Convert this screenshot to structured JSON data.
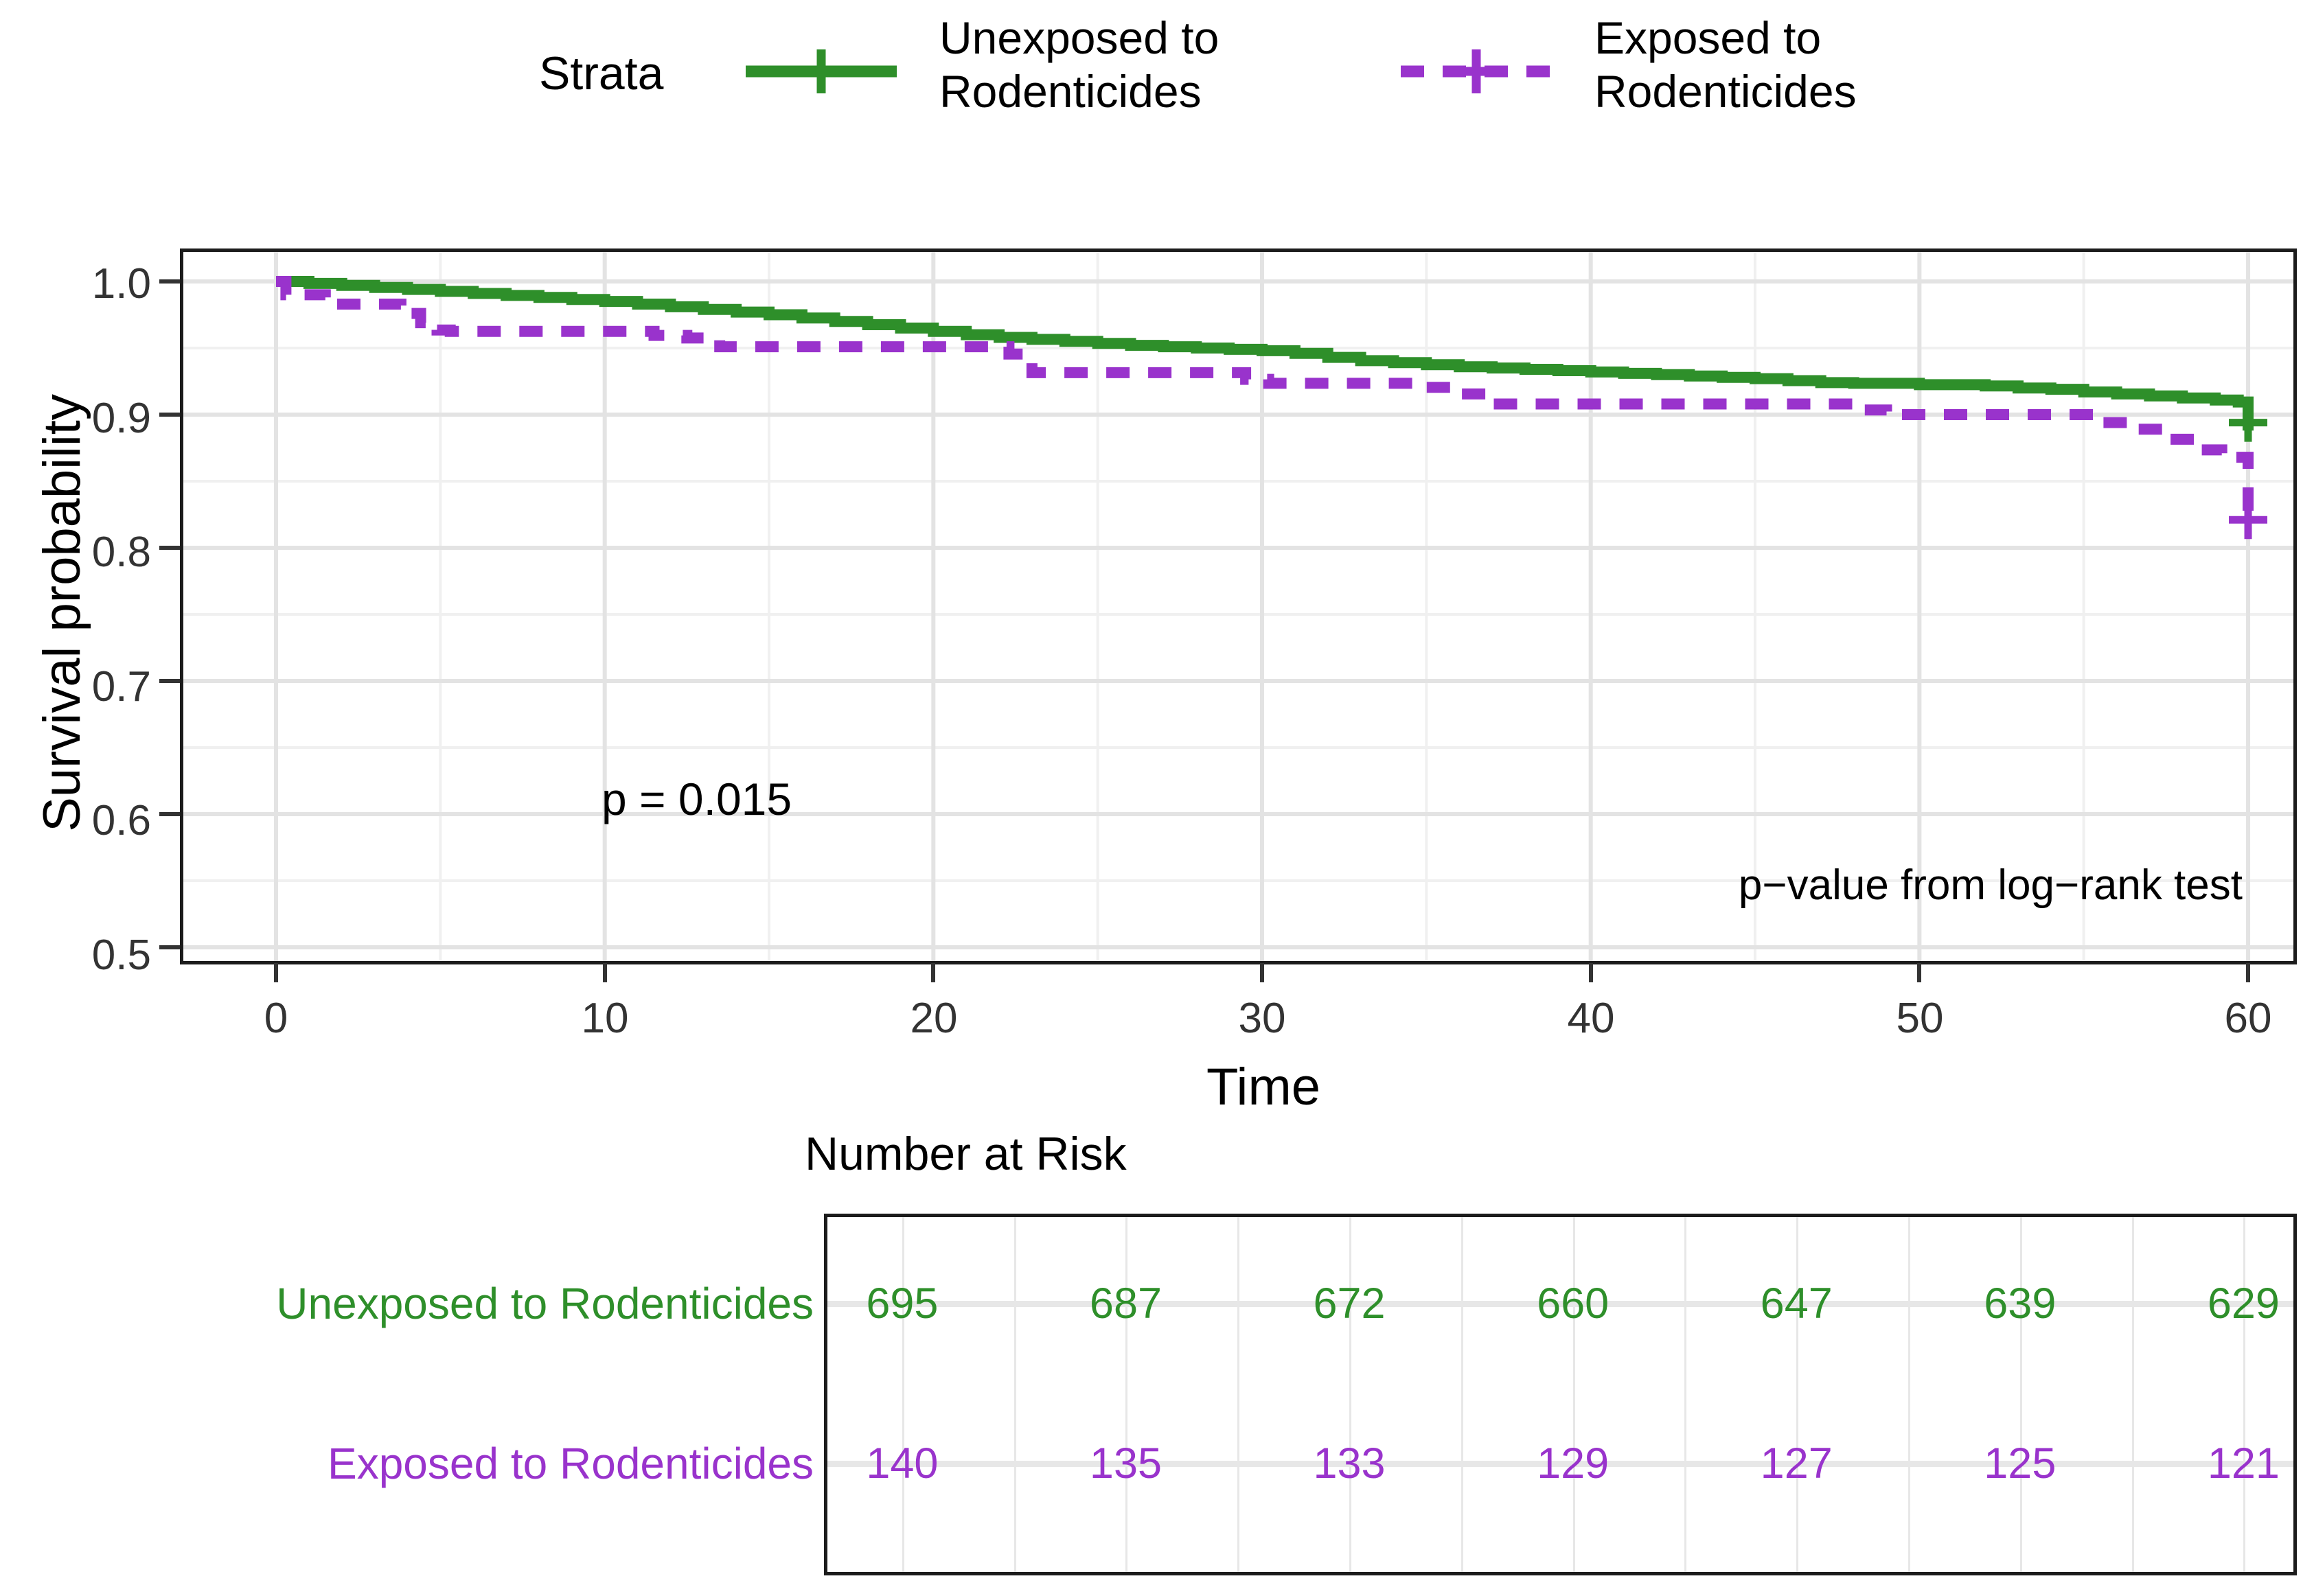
{
  "legend": {
    "title": "Strata",
    "items": [
      {
        "label_lines": [
          "Unexposed to",
          "Rodenticides"
        ],
        "series": 0
      },
      {
        "label_lines": [
          "Exposed to",
          "Rodenticides"
        ],
        "series": 1
      }
    ]
  },
  "chart_data": {
    "type": "line",
    "subtype": "kaplan-meier-step-curves",
    "title": "",
    "xlabel": "Time",
    "ylabel": "Survival probability",
    "xlim": [
      0,
      60
    ],
    "ylim": [
      0.5,
      1.0
    ],
    "xticks": [
      0,
      10,
      20,
      30,
      40,
      50,
      60
    ],
    "xtick_labels": [
      "0",
      "10",
      "20",
      "30",
      "40",
      "50",
      "60"
    ],
    "yticks": [
      1.0,
      0.9,
      0.8,
      0.7,
      0.6,
      0.5
    ],
    "ytick_labels": [
      "1.0",
      "0.9",
      "0.8",
      "0.7",
      "0.6",
      "0.5"
    ],
    "grid": "major+minor",
    "legend_position": "top",
    "annotations": [
      {
        "text": "p = 0.015",
        "x": 10,
        "y": 0.6,
        "align": "left"
      },
      {
        "text": "p−value from log−rank test",
        "x": 59.5,
        "y": 0.52,
        "align": "right"
      }
    ],
    "series": [
      {
        "name": "Unexposed to Rodenticides",
        "color": "#2E8F2A",
        "line": "solid",
        "steps": [
          [
            0,
            1.0
          ],
          [
            1,
            0.9985
          ],
          [
            2,
            0.997
          ],
          [
            3,
            0.9955
          ],
          [
            4,
            0.994
          ],
          [
            5,
            0.9925
          ],
          [
            6,
            0.991
          ],
          [
            7,
            0.9895
          ],
          [
            8,
            0.988
          ],
          [
            9,
            0.9865
          ],
          [
            10,
            0.985
          ],
          [
            11,
            0.983
          ],
          [
            12,
            0.981
          ],
          [
            13,
            0.979
          ],
          [
            14,
            0.977
          ],
          [
            15,
            0.975
          ],
          [
            16,
            0.9725
          ],
          [
            17,
            0.97
          ],
          [
            18,
            0.9675
          ],
          [
            19,
            0.965
          ],
          [
            20,
            0.9625
          ],
          [
            21,
            0.96
          ],
          [
            22,
            0.958
          ],
          [
            23,
            0.9565
          ],
          [
            24,
            0.955
          ],
          [
            25,
            0.9535
          ],
          [
            26,
            0.952
          ],
          [
            27,
            0.951
          ],
          [
            28,
            0.95
          ],
          [
            29,
            0.949
          ],
          [
            30,
            0.948
          ],
          [
            31,
            0.946
          ],
          [
            32,
            0.943
          ],
          [
            33,
            0.9405
          ],
          [
            34,
            0.939
          ],
          [
            35,
            0.9375
          ],
          [
            36,
            0.936
          ],
          [
            37,
            0.935
          ],
          [
            38,
            0.934
          ],
          [
            39,
            0.933
          ],
          [
            40,
            0.932
          ],
          [
            41,
            0.931
          ],
          [
            42,
            0.93
          ],
          [
            43,
            0.929
          ],
          [
            44,
            0.928
          ],
          [
            45,
            0.927
          ],
          [
            46,
            0.9255
          ],
          [
            47,
            0.924
          ],
          [
            48,
            0.9235
          ],
          [
            50,
            0.9225
          ],
          [
            52,
            0.9215
          ],
          [
            53,
            0.92
          ],
          [
            54,
            0.919
          ],
          [
            55,
            0.917
          ],
          [
            56,
            0.9155
          ],
          [
            57,
            0.914
          ],
          [
            58,
            0.9125
          ],
          [
            59,
            0.911
          ],
          [
            59.7,
            0.9095
          ],
          [
            60,
            0.888
          ]
        ],
        "censor_marks": [
          [
            60,
            0.894
          ]
        ]
      },
      {
        "name": "Exposed to Rodenticides",
        "color": "#9933CC",
        "line": "dashed",
        "steps": [
          [
            0,
            1.0
          ],
          [
            0.3,
            0.99
          ],
          [
            1.5,
            0.983
          ],
          [
            3.8,
            0.976
          ],
          [
            4.4,
            0.969
          ],
          [
            4.9,
            0.9635
          ],
          [
            5.3,
            0.9625
          ],
          [
            11.5,
            0.9595
          ],
          [
            12.5,
            0.9575
          ],
          [
            13.5,
            0.951
          ],
          [
            22.3,
            0.9455
          ],
          [
            23,
            0.9315
          ],
          [
            29.5,
            0.9265
          ],
          [
            30.2,
            0.9235
          ],
          [
            35,
            0.9205
          ],
          [
            36,
            0.9155
          ],
          [
            37,
            0.908
          ],
          [
            48,
            0.9035
          ],
          [
            49,
            0.9
          ],
          [
            55.5,
            0.894
          ],
          [
            56.5,
            0.889
          ],
          [
            57.5,
            0.8815
          ],
          [
            58.5,
            0.8735
          ],
          [
            59.2,
            0.868
          ],
          [
            60,
            0.815
          ]
        ],
        "censor_marks": [
          [
            60,
            0.821
          ]
        ]
      }
    ],
    "risk_table": {
      "title": "Number at Risk",
      "times": [
        0,
        10,
        20,
        30,
        40,
        50,
        60
      ],
      "rows": [
        {
          "label": "Unexposed to Rodenticides",
          "color": "#2E8F2A",
          "values": [
            "695",
            "687",
            "672",
            "660",
            "647",
            "639",
            "629"
          ]
        },
        {
          "label": "Exposed to Rodenticides",
          "color": "#9933CC",
          "values": [
            "140",
            "135",
            "133",
            "129",
            "127",
            "125",
            "121"
          ]
        }
      ]
    }
  }
}
